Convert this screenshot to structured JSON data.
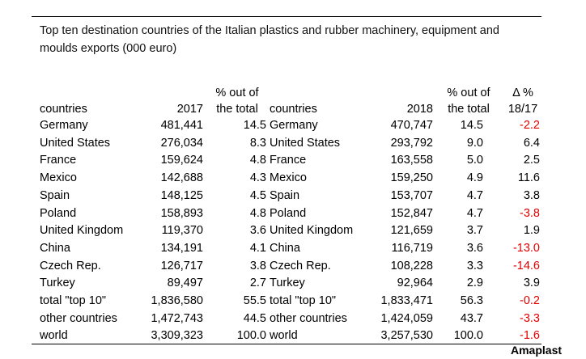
{
  "title": "Top ten destination countries of the Italian plastics and rubber machinery, equipment and moulds exports (000 euro)",
  "headers": {
    "countries_2017": "countries",
    "year_2017": "2017",
    "share_2017": "% out of the total",
    "countries_2018": "countries",
    "year_2018": "2018",
    "share_2018": "% out of the total",
    "delta": "Δ % 18/17"
  },
  "rows": [
    {
      "c17": "Germany",
      "v17": "481,441",
      "p17": "14.5",
      "c18": "Germany",
      "v18": "470,747",
      "p18": "14.5",
      "d": "-2.2",
      "neg": true
    },
    {
      "c17": "United States",
      "v17": "276,034",
      "p17": "8.3",
      "c18": "United States",
      "v18": "293,792",
      "p18": "9.0",
      "d": "6.4",
      "neg": false
    },
    {
      "c17": "France",
      "v17": "159,624",
      "p17": "4.8",
      "c18": "France",
      "v18": "163,558",
      "p18": "5.0",
      "d": "2.5",
      "neg": false
    },
    {
      "c17": "Mexico",
      "v17": "142,688",
      "p17": "4.3",
      "c18": "Mexico",
      "v18": "159,250",
      "p18": "4.9",
      "d": "11.6",
      "neg": false
    },
    {
      "c17": "Spain",
      "v17": "148,125",
      "p17": "4.5",
      "c18": "Spain",
      "v18": "153,707",
      "p18": "4.7",
      "d": "3.8",
      "neg": false
    },
    {
      "c17": "Poland",
      "v17": "158,893",
      "p17": "4.8",
      "c18": "Poland",
      "v18": "152,847",
      "p18": "4.7",
      "d": "-3.8",
      "neg": true
    },
    {
      "c17": "United Kingdom",
      "v17": "119,370",
      "p17": "3.6",
      "c18": "United Kingdom",
      "v18": "121,659",
      "p18": "3.7",
      "d": "1.9",
      "neg": false
    },
    {
      "c17": "China",
      "v17": "134,191",
      "p17": "4.1",
      "c18": "China",
      "v18": "116,719",
      "p18": "3.6",
      "d": "-13.0",
      "neg": true
    },
    {
      "c17": "Czech Rep.",
      "v17": "126,717",
      "p17": "3.8",
      "c18": "Czech Rep.",
      "v18": "108,228",
      "p18": "3.3",
      "d": "-14.6",
      "neg": true
    },
    {
      "c17": "Turkey",
      "v17": "89,497",
      "p17": "2.7",
      "c18": "Turkey",
      "v18": "92,964",
      "p18": "2.9",
      "d": "3.9",
      "neg": false
    },
    {
      "c17": "total \"top 10\"",
      "v17": "1,836,580",
      "p17": "55.5",
      "c18": "total \"top 10\"",
      "v18": "1,833,471",
      "p18": "56.3",
      "d": "-0.2",
      "neg": true
    },
    {
      "c17": "other countries",
      "v17": "1,472,743",
      "p17": "44.5",
      "c18": "other countries",
      "v18": "1,424,059",
      "p18": "43.7",
      "d": "-3.3",
      "neg": true
    },
    {
      "c17": "world",
      "v17": "3,309,323",
      "p17": "100.0",
      "c18": "world",
      "v18": "3,257,530",
      "p18": "100.0",
      "d": "-1.6",
      "neg": true
    }
  ],
  "colors": {
    "negative": "#e00000",
    "positive": "#000000"
  },
  "brand": "Amaplast"
}
